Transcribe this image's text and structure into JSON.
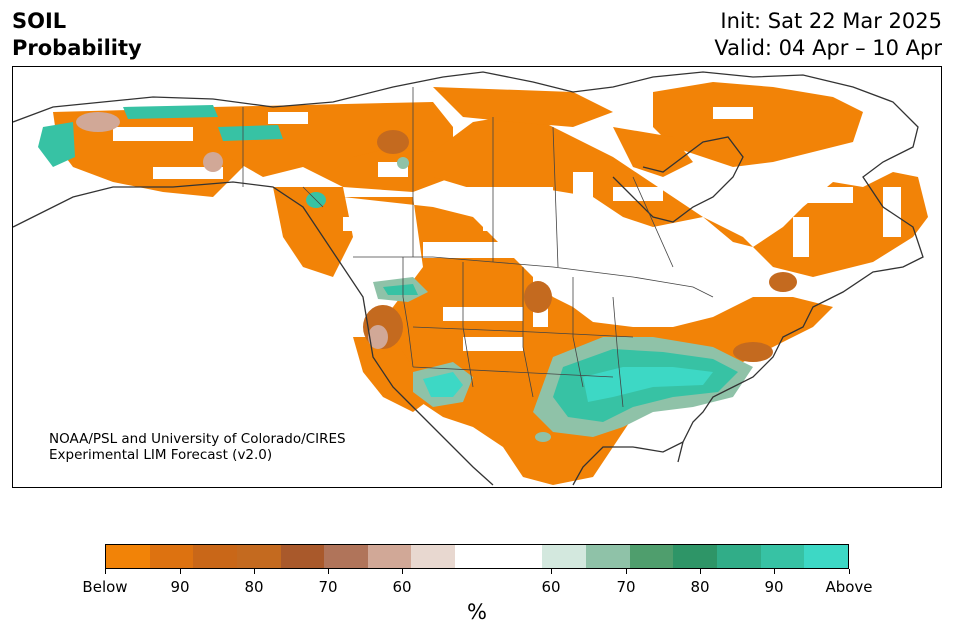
{
  "header": {
    "variable": "SOIL",
    "kind": "Probability",
    "init": "Init: Sat 22 Mar 2025",
    "valid": "Valid: 04 Apr – 10 Apr"
  },
  "credit": {
    "line1": "NOAA/PSL and University of Colorado/CIRES",
    "line2": "Experimental LIM Forecast (v2.0)"
  },
  "colorbar": {
    "colors": [
      "#f28307",
      "#dd7210",
      "#c96718",
      "#c46a1f",
      "#a9592b",
      "#b0745a",
      "#d1a897",
      "#e8d8d0",
      "#ffffff",
      "#ffffff",
      "#d3e8de",
      "#8fc2a8",
      "#4f9e6d",
      "#2e9567",
      "#31ad88",
      "#37c2a4",
      "#3dd8c5"
    ],
    "tick_labels": [
      "Below",
      "90",
      "80",
      "70",
      "60",
      "60",
      "70",
      "80",
      "90",
      "Above"
    ],
    "unit": "%"
  },
  "map": {
    "palette": {
      "below": "#f28307",
      "below_dark": "#c46a1f",
      "below_mid": "#d1a897",
      "above_light": "#8fc2a8",
      "above_mid": "#31ad88",
      "above_strong": "#3dd8c5",
      "coast": "#333333",
      "border": "#444444"
    }
  }
}
